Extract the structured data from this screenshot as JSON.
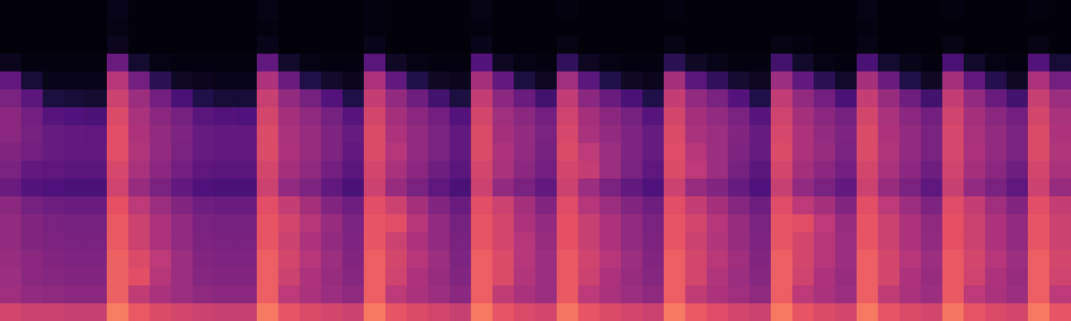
{
  "chart_data": {
    "type": "heatmap",
    "grid": false,
    "tick_labels": false,
    "cell_range": [
      0,
      100
    ],
    "cells": [
      [
        1,
        1,
        1,
        1,
        1,
        4,
        1,
        1,
        1,
        1,
        1,
        1,
        3,
        1,
        1,
        1,
        1,
        2,
        1,
        1,
        1,
        1,
        3,
        1,
        1,
        1,
        2,
        1,
        1,
        1,
        1,
        2,
        1,
        1,
        1,
        1,
        1,
        1,
        1,
        1,
        3,
        1,
        1,
        1,
        2,
        1,
        1,
        1,
        2,
        1
      ],
      [
        1,
        1,
        1,
        1,
        1,
        3,
        1,
        1,
        1,
        1,
        1,
        1,
        2,
        1,
        1,
        1,
        1,
        2,
        1,
        1,
        1,
        1,
        2,
        1,
        1,
        1,
        1,
        1,
        1,
        1,
        1,
        1,
        1,
        1,
        1,
        1,
        1,
        1,
        1,
        1,
        2,
        1,
        1,
        1,
        1,
        1,
        1,
        1,
        1,
        1
      ],
      [
        1,
        1,
        1,
        1,
        1,
        5,
        1,
        1,
        1,
        1,
        1,
        1,
        4,
        1,
        1,
        1,
        1,
        4,
        1,
        1,
        1,
        1,
        4,
        1,
        1,
        1,
        3,
        1,
        1,
        1,
        1,
        3,
        1,
        1,
        1,
        1,
        3,
        2,
        1,
        1,
        3,
        1,
        1,
        1,
        3,
        1,
        1,
        1,
        3,
        1
      ],
      [
        5,
        2,
        2,
        2,
        2,
        32,
        9,
        3,
        2,
        2,
        2,
        2,
        30,
        8,
        3,
        2,
        2,
        28,
        7,
        3,
        2,
        2,
        26,
        6,
        3,
        2,
        18,
        6,
        3,
        2,
        2,
        16,
        7,
        4,
        2,
        2,
        22,
        8,
        3,
        2,
        24,
        9,
        4,
        2,
        24,
        8,
        3,
        2,
        26,
        10
      ],
      [
        30,
        10,
        4,
        4,
        4,
        50,
        34,
        16,
        7,
        5,
        4,
        4,
        48,
        32,
        14,
        8,
        5,
        48,
        30,
        14,
        7,
        5,
        46,
        30,
        12,
        6,
        45,
        28,
        14,
        7,
        5,
        46,
        28,
        18,
        9,
        6,
        44,
        30,
        16,
        8,
        46,
        32,
        14,
        7,
        46,
        30,
        15,
        7,
        48,
        34
      ],
      [
        36,
        28,
        12,
        10,
        9,
        56,
        44,
        34,
        24,
        14,
        10,
        10,
        55,
        42,
        35,
        26,
        14,
        54,
        42,
        33,
        22,
        12,
        54,
        40,
        32,
        22,
        53,
        40,
        32,
        24,
        14,
        54,
        42,
        36,
        26,
        14,
        53,
        42,
        34,
        24,
        54,
        43,
        33,
        22,
        54,
        42,
        32,
        22,
        55,
        44
      ],
      [
        40,
        34,
        27,
        25,
        24,
        60,
        47,
        40,
        35,
        28,
        26,
        25,
        58,
        46,
        41,
        35,
        27,
        58,
        46,
        40,
        34,
        26,
        58,
        45,
        40,
        34,
        57,
        46,
        40,
        35,
        27,
        58,
        46,
        42,
        36,
        27,
        57,
        46,
        40,
        35,
        58,
        47,
        40,
        34,
        57,
        46,
        40,
        34,
        58,
        47
      ],
      [
        40,
        35,
        31,
        30,
        29,
        62,
        48,
        42,
        37,
        31,
        30,
        30,
        60,
        47,
        43,
        37,
        31,
        60,
        48,
        42,
        36,
        30,
        60,
        46,
        42,
        36,
        59,
        47,
        42,
        37,
        31,
        60,
        47,
        44,
        38,
        31,
        59,
        48,
        42,
        37,
        60,
        48,
        42,
        36,
        59,
        47,
        42,
        36,
        60,
        48
      ],
      [
        38,
        34,
        31,
        30,
        30,
        62,
        49,
        42,
        36,
        31,
        30,
        30,
        60,
        48,
        43,
        37,
        30,
        60,
        50,
        42,
        36,
        30,
        60,
        48,
        42,
        35,
        60,
        52,
        44,
        37,
        31,
        61,
        50,
        44,
        37,
        31,
        60,
        48,
        43,
        36,
        60,
        49,
        42,
        36,
        59,
        48,
        42,
        36,
        60,
        49
      ],
      [
        36,
        30,
        29,
        28,
        28,
        59,
        47,
        40,
        34,
        29,
        28,
        28,
        58,
        46,
        41,
        34,
        28,
        58,
        47,
        40,
        33,
        28,
        58,
        47,
        40,
        34,
        58,
        54,
        44,
        36,
        29,
        60,
        52,
        44,
        35,
        28,
        58,
        46,
        40,
        34,
        58,
        47,
        40,
        33,
        57,
        46,
        40,
        33,
        58,
        47
      ],
      [
        32,
        26,
        25,
        24,
        24,
        57,
        43,
        36,
        30,
        25,
        24,
        24,
        56,
        42,
        37,
        30,
        24,
        56,
        43,
        36,
        29,
        24,
        56,
        42,
        36,
        30,
        56,
        44,
        36,
        30,
        25,
        56,
        43,
        38,
        31,
        25,
        55,
        42,
        36,
        30,
        56,
        43,
        36,
        29,
        55,
        42,
        36,
        29,
        56,
        43
      ],
      [
        40,
        35,
        33,
        32,
        32,
        63,
        52,
        44,
        38,
        33,
        32,
        32,
        62,
        54,
        46,
        38,
        33,
        62,
        56,
        46,
        38,
        32,
        62,
        56,
        46,
        38,
        61,
        50,
        44,
        38,
        33,
        62,
        54,
        46,
        39,
        33,
        61,
        52,
        46,
        38,
        62,
        52,
        44,
        37,
        61,
        54,
        45,
        38,
        62,
        54
      ],
      [
        42,
        38,
        36,
        35,
        35,
        65,
        56,
        48,
        42,
        36,
        35,
        35,
        64,
        58,
        50,
        43,
        36,
        64,
        62,
        50,
        42,
        35,
        64,
        58,
        48,
        42,
        63,
        55,
        48,
        42,
        36,
        64,
        58,
        50,
        43,
        36,
        64,
        62,
        52,
        43,
        64,
        56,
        48,
        41,
        63,
        56,
        48,
        42,
        64,
        56
      ],
      [
        42,
        38,
        37,
        36,
        36,
        65,
        56,
        48,
        42,
        37,
        36,
        36,
        64,
        56,
        48,
        42,
        37,
        64,
        56,
        48,
        42,
        36,
        64,
        58,
        50,
        43,
        63,
        55,
        48,
        42,
        37,
        64,
        56,
        49,
        43,
        37,
        64,
        58,
        50,
        44,
        64,
        56,
        48,
        42,
        63,
        56,
        48,
        42,
        64,
        56
      ],
      [
        43,
        40,
        38,
        37,
        37,
        67,
        60,
        52,
        44,
        38,
        37,
        37,
        66,
        58,
        50,
        44,
        38,
        66,
        58,
        50,
        44,
        37,
        66,
        60,
        50,
        44,
        65,
        57,
        50,
        44,
        38,
        66,
        58,
        51,
        45,
        38,
        66,
        58,
        50,
        44,
        66,
        58,
        50,
        44,
        65,
        58,
        50,
        44,
        66,
        58
      ],
      [
        44,
        40,
        39,
        38,
        38,
        67,
        62,
        50,
        44,
        39,
        38,
        38,
        66,
        56,
        48,
        43,
        39,
        66,
        57,
        48,
        43,
        38,
        66,
        60,
        49,
        44,
        65,
        56,
        48,
        43,
        39,
        66,
        58,
        49,
        44,
        39,
        66,
        57,
        48,
        43,
        66,
        58,
        48,
        43,
        65,
        57,
        48,
        43,
        66,
        57
      ],
      [
        45,
        42,
        41,
        40,
        40,
        67,
        53,
        47,
        44,
        41,
        40,
        40,
        66,
        52,
        47,
        44,
        41,
        66,
        52,
        47,
        44,
        40,
        66,
        53,
        47,
        44,
        65,
        52,
        47,
        44,
        41,
        66,
        53,
        48,
        45,
        41,
        66,
        52,
        47,
        44,
        66,
        53,
        47,
        44,
        65,
        52,
        47,
        44,
        66,
        52
      ],
      [
        58,
        56,
        56,
        55,
        55,
        73,
        65,
        60,
        58,
        56,
        55,
        55,
        72,
        64,
        60,
        58,
        56,
        72,
        64,
        60,
        58,
        55,
        72,
        64,
        60,
        58,
        71,
        64,
        60,
        58,
        56,
        72,
        65,
        61,
        58,
        56,
        72,
        64,
        60,
        58,
        72,
        64,
        60,
        58,
        71,
        64,
        60,
        58,
        72,
        64
      ]
    ]
  }
}
